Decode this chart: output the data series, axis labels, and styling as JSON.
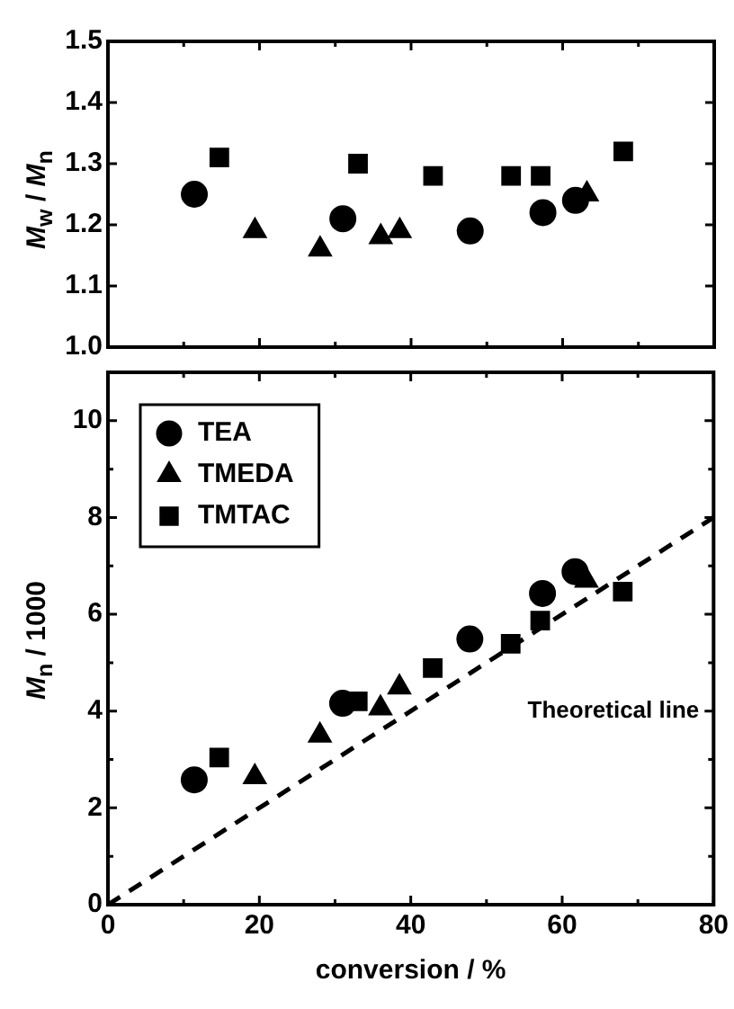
{
  "chart_data": [
    {
      "type": "scatter",
      "ylabel": "M$_{w}$ / M$_{n}$",
      "xlim": [
        0,
        80
      ],
      "xticks": [
        0,
        {
          "value": 10,
          "label": null
        },
        20,
        {
          "value": 30,
          "label": null
        },
        40,
        {
          "value": 50,
          "label": null
        },
        60,
        {
          "value": 70,
          "label": null
        },
        80
      ],
      "ylim": [
        1.0,
        1.5
      ],
      "yticks": [
        {
          "value": 1.0,
          "label": "1.0"
        },
        1.1,
        1.2,
        1.3,
        1.4,
        1.5
      ],
      "tick_labels": "y",
      "grid": false,
      "legend": false,
      "series": [
        {
          "marker": "circle",
          "color": "#000000",
          "x": [
            11.4,
            31,
            47.8,
            57.4,
            61.7
          ],
          "values": [
            1.25,
            1.21,
            1.19,
            1.22,
            1.24
          ]
        },
        {
          "marker": "triangle",
          "color": "#000000",
          "x": [
            19.4,
            28,
            36,
            38.5,
            63.2
          ],
          "values": [
            1.19,
            1.16,
            1.18,
            1.19,
            1.25
          ]
        },
        {
          "marker": "square",
          "color": "#000000",
          "x": [
            14.7,
            33,
            42.9,
            53.2,
            57.1,
            68
          ],
          "values": [
            1.31,
            1.3,
            1.28,
            1.28,
            1.28,
            1.32
          ]
        }
      ]
    },
    {
      "type": "scatter",
      "xlabel": "conversion / %",
      "ylabel": "M$_{n}$ / 1000",
      "xlim": [
        0,
        80
      ],
      "xticks": [
        0,
        {
          "value": 10,
          "label": null
        },
        20,
        {
          "value": 30,
          "label": null
        },
        40,
        {
          "value": 50,
          "label": null
        },
        60,
        {
          "value": 70,
          "label": null
        },
        80
      ],
      "ylim": [
        0,
        11
      ],
      "yticks": [
        0,
        {
          "value": 1,
          "label": null
        },
        2,
        {
          "value": 3,
          "label": null
        },
        4,
        {
          "value": 5,
          "label": null
        },
        6,
        {
          "value": 7,
          "label": null
        },
        8,
        {
          "value": 9,
          "label": null
        },
        10
      ],
      "grid": false,
      "legend": "top left",
      "series": [
        {
          "name": "TEA",
          "marker": "circle",
          "color": "#000000",
          "x": [
            11.4,
            31,
            47.8,
            57.4,
            61.7
          ],
          "values": [
            2.58,
            4.16,
            5.49,
            6.43,
            6.88
          ]
        },
        {
          "name": "TMEDA",
          "marker": "triangle",
          "color": "#000000",
          "x": [
            19.4,
            28,
            36,
            38.5,
            63.2
          ],
          "values": [
            2.64,
            3.5,
            4.06,
            4.49,
            6.7
          ]
        },
        {
          "name": "TMTAC",
          "marker": "square",
          "color": "#000000",
          "x": [
            14.7,
            33,
            42.9,
            53.2,
            57.1,
            68
          ],
          "values": [
            3.04,
            4.2,
            4.89,
            5.39,
            5.87,
            6.47
          ]
        },
        {
          "name": "Theoretical line",
          "type": "line",
          "marker": "none",
          "line_style": "dashed",
          "color": "#000000",
          "x": [
            0,
            80
          ],
          "values": [
            0,
            8
          ]
        }
      ]
    }
  ]
}
